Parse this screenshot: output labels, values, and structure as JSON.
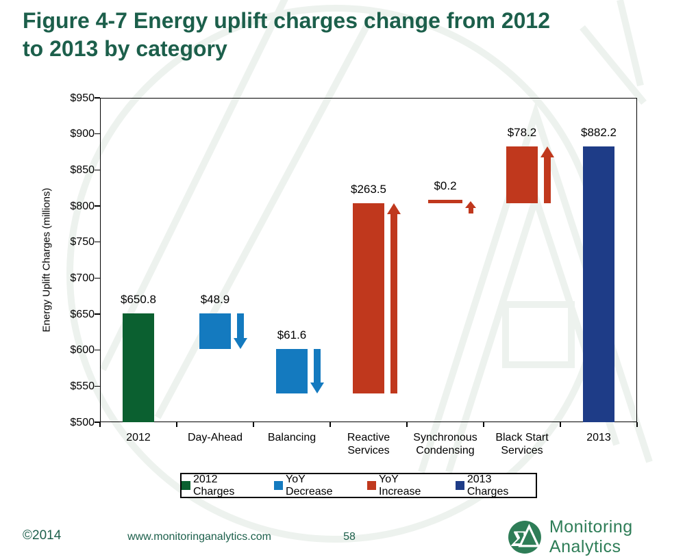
{
  "title": {
    "text": "Figure 4-7 Energy uplift charges change from 2012 to 2013 by category",
    "lines": [
      "Figure 4-7 Energy uplift charges change from 2012",
      "to 2013 by category"
    ]
  },
  "chart_data": {
    "type": "bar",
    "subtype": "waterfall",
    "ylabel": "Energy Uplift Charges (millions)",
    "ylim": [
      500,
      950
    ],
    "ytick_step": 50,
    "ytick_prefix": "$",
    "grid": false,
    "categories": [
      "2012",
      "Day-Ahead",
      "Balancing",
      "Reactive Services",
      "Synchronous Condensing",
      "Black Start Services",
      "2013"
    ],
    "category_lines": [
      [
        "2012"
      ],
      [
        "Day-Ahead"
      ],
      [
        "Balancing"
      ],
      [
        "Reactive",
        "Services"
      ],
      [
        "Synchronous",
        "Condensing"
      ],
      [
        "Black Start",
        "Services"
      ],
      [
        "2013"
      ]
    ],
    "bars": [
      {
        "category": "2012",
        "kind": "total_start",
        "value": 650.8,
        "label": "$650.8",
        "from": 500,
        "to": 650.8,
        "arrow": "none"
      },
      {
        "category": "Day-Ahead",
        "kind": "decrease",
        "value": 48.9,
        "label": "$48.9",
        "from": 650.8,
        "to": 601.9,
        "arrow": "down"
      },
      {
        "category": "Balancing",
        "kind": "decrease",
        "value": 61.6,
        "label": "$61.6",
        "from": 601.9,
        "to": 540.3,
        "arrow": "down"
      },
      {
        "category": "Reactive Services",
        "kind": "increase",
        "value": 263.5,
        "label": "$263.5",
        "from": 540.3,
        "to": 803.8,
        "arrow": "up"
      },
      {
        "category": "Synchronous Condensing",
        "kind": "increase",
        "value": 0.2,
        "label": "$0.2",
        "from": 803.8,
        "to": 804.0,
        "arrow": "up"
      },
      {
        "category": "Black Start Services",
        "kind": "increase",
        "value": 78.2,
        "label": "$78.2",
        "from": 804.0,
        "to": 882.2,
        "arrow": "up"
      },
      {
        "category": "2013",
        "kind": "total_end",
        "value": 882.2,
        "label": "$882.2",
        "from": 500,
        "to": 882.2,
        "arrow": "none"
      }
    ],
    "colors": {
      "total_start": "#0b6030",
      "decrease": "#147abf",
      "increase": "#c0381d",
      "total_end": "#1e3c87"
    },
    "legend_position": "bottom"
  },
  "legend": {
    "items": [
      {
        "label": "2012 Charges",
        "color_key": "total_start"
      },
      {
        "label": "YoY Decrease",
        "color_key": "decrease"
      },
      {
        "label": "YoY Increase",
        "color_key": "increase"
      },
      {
        "label": "2013 Charges",
        "color_key": "total_end"
      }
    ]
  },
  "footer": {
    "copyright": "©2014",
    "website": "www.monitoringanalytics.com",
    "page_number": "58",
    "brand_name": "Monitoring Analytics",
    "brand_color": "#2e7d57"
  }
}
